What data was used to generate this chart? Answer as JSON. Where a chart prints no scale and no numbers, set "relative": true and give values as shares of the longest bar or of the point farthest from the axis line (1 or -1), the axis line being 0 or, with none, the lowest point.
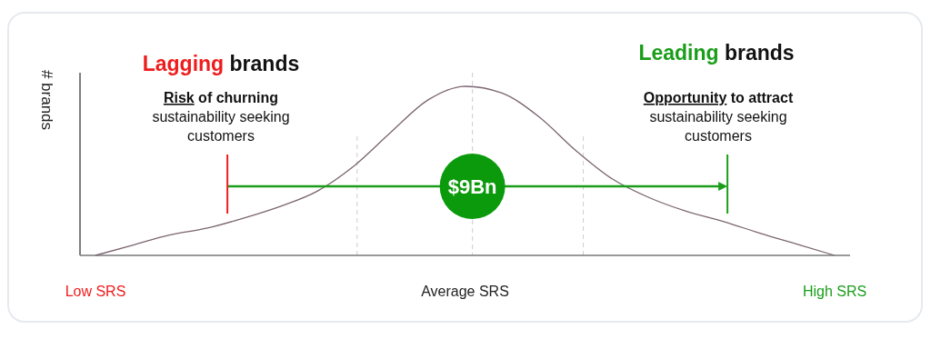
{
  "chart_data": {
    "type": "line",
    "relative": true,
    "ylabel": "# brands",
    "categories": [
      "Low SRS",
      null,
      null,
      null,
      null,
      null,
      null,
      null,
      null,
      null,
      "Average SRS",
      null,
      null,
      null,
      null,
      null,
      null,
      null,
      null,
      null,
      "High SRS"
    ],
    "values": [
      0,
      0.06,
      0.12,
      0.16,
      0.22,
      0.29,
      0.38,
      0.53,
      0.73,
      0.92,
      1,
      0.96,
      0.82,
      0.62,
      0.45,
      0.34,
      0.26,
      0.2,
      0.13,
      0.065,
      0
    ],
    "color": "#7b6470",
    "marker": "none",
    "line_style": "solid",
    "legend": false,
    "annotations": [
      "Lagging brands",
      "Leading brands",
      "Risk of churning\nsustainability seeking\ncustomers",
      "Opportunity to attract\nsustainability seeking\ncustomers",
      "$9Bn"
    ]
  }
}
